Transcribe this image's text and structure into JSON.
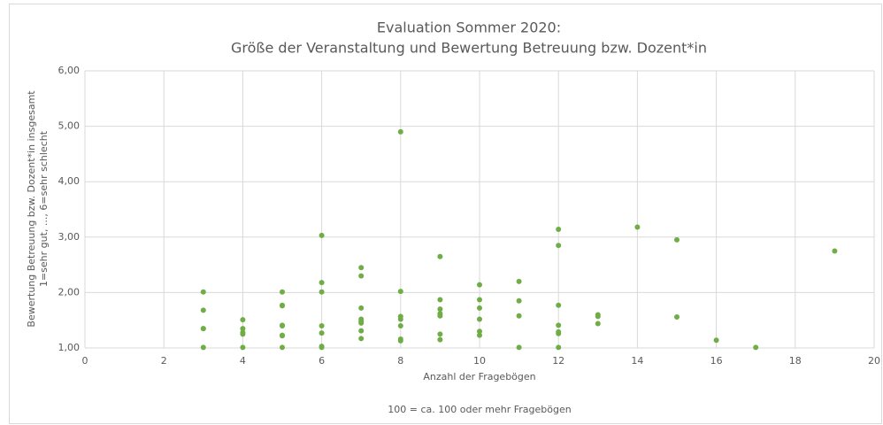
{
  "chart_data": {
    "type": "scatter",
    "title": [
      "Evaluation Sommer 2020:",
      "Größe der Veranstaltung und Bewertung Betreuung bzw. Dozent*in"
    ],
    "ylabel": [
      "Bewertung Betreuung bzw. Dozent*in insgesamt",
      "1=sehr gut, ..., 6=sehr schlecht"
    ],
    "xlabel": "Anzahl der Fragebögen",
    "annotation": "100 = ca. 100 oder mehr Fragebögen",
    "color": "#70ad47",
    "grid": true,
    "xlim": [
      0,
      20
    ],
    "xticks": [
      0,
      2,
      4,
      6,
      8,
      10,
      12,
      14,
      16,
      18,
      20
    ],
    "ylim": [
      1,
      6
    ],
    "yticks": [
      {
        "value": 1,
        "label": "1,00"
      },
      {
        "value": 2,
        "label": "2,00"
      },
      {
        "value": 3,
        "label": "3,00"
      },
      {
        "value": 4,
        "label": "4,00"
      },
      {
        "value": 5,
        "label": "5,00"
      },
      {
        "value": 6,
        "label": "6,00"
      }
    ],
    "x": [
      3,
      3,
      3,
      3,
      3,
      4,
      4,
      4,
      4,
      4,
      5,
      5,
      5,
      5,
      5,
      5,
      5,
      5,
      6,
      6,
      6,
      6,
      6,
      6,
      6,
      7,
      7,
      7,
      7,
      7,
      7,
      7,
      7,
      8,
      8,
      8,
      8,
      8,
      8,
      8,
      9,
      9,
      9,
      9,
      9,
      9,
      9,
      10,
      10,
      10,
      10,
      10,
      10,
      11,
      11,
      11,
      11,
      12,
      12,
      12,
      12,
      12,
      12,
      12,
      13,
      13,
      13,
      14,
      15,
      15,
      16,
      17,
      19
    ],
    "y": [
      2.01,
      1.68,
      1.35,
      1.35,
      1.01,
      1.51,
      1.35,
      1.28,
      1.25,
      1.01,
      2.01,
      1.77,
      1.76,
      1.41,
      1.4,
      1.23,
      1.22,
      1.01,
      3.03,
      2.18,
      2.01,
      1.4,
      1.27,
      1.03,
      1.01,
      2.45,
      2.3,
      1.72,
      1.52,
      1.48,
      1.45,
      1.31,
      1.17,
      4.9,
      2.02,
      1.57,
      1.52,
      1.4,
      1.16,
      1.13,
      2.65,
      1.87,
      1.7,
      1.62,
      1.58,
      1.25,
      1.15,
      2.14,
      1.87,
      1.72,
      1.52,
      1.3,
      1.23,
      2.2,
      1.85,
      1.58,
      1.01,
      3.14,
      2.85,
      1.77,
      1.41,
      1.29,
      1.26,
      1.01,
      1.6,
      1.57,
      1.44,
      3.18,
      2.95,
      1.56,
      1.14,
      1.01,
      2.75
    ]
  }
}
